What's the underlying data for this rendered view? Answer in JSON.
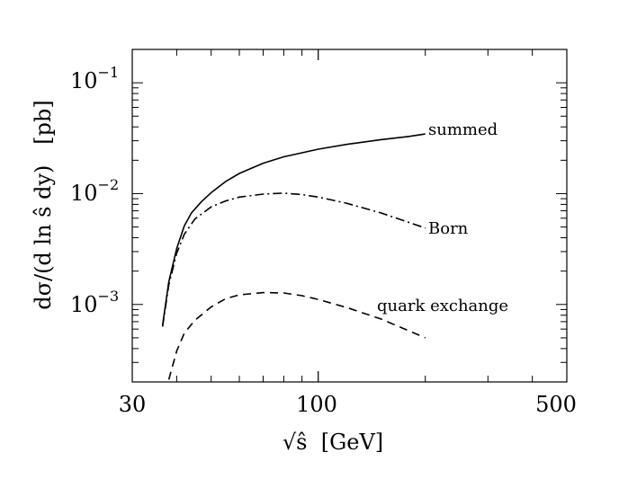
{
  "chart_data": {
    "type": "line",
    "title": "",
    "xlabel": "√ŝ  [GeV]",
    "ylabel": "dσ/(d ln ŝ dy)   [pb]",
    "xscale": "log",
    "yscale": "log",
    "xlim": [
      30,
      500
    ],
    "ylim": [
      0.0002,
      0.2
    ],
    "x_ticks": [
      {
        "value": 30,
        "label": "30"
      },
      {
        "value": 100,
        "label": "100"
      },
      {
        "value": 500,
        "label": "500"
      }
    ],
    "y_ticks": [
      {
        "value": 0.001,
        "base": "10",
        "exp": "−3"
      },
      {
        "value": 0.01,
        "base": "10",
        "exp": "−2"
      },
      {
        "value": 0.1,
        "base": "10",
        "exp": "−1"
      }
    ],
    "series": [
      {
        "name": "summed",
        "style": "solid",
        "x": [
          36.5,
          38,
          40,
          42,
          44,
          47,
          50,
          55,
          60,
          70,
          80,
          100,
          120,
          150,
          180,
          200
        ],
        "y": [
          0.00065,
          0.0016,
          0.0032,
          0.0051,
          0.0067,
          0.0085,
          0.0102,
          0.0129,
          0.0152,
          0.0188,
          0.0215,
          0.0252,
          0.0278,
          0.0307,
          0.0328,
          0.0345
        ]
      },
      {
        "name": "Born",
        "style": "dashdot",
        "x": [
          36.5,
          38,
          40,
          42,
          45,
          50,
          55,
          60,
          70,
          80,
          90,
          100,
          120,
          150,
          200
        ],
        "y": [
          0.00063,
          0.0015,
          0.0029,
          0.0043,
          0.0059,
          0.0076,
          0.0086,
          0.0093,
          0.0099,
          0.0101,
          0.0098,
          0.0093,
          0.0082,
          0.0067,
          0.0049
        ]
      },
      {
        "name": "quark exchange",
        "style": "dashed",
        "x": [
          38,
          40,
          42,
          45,
          50,
          55,
          60,
          70,
          80,
          90,
          100,
          120,
          150,
          200
        ],
        "y": [
          0.00021,
          0.00038,
          0.00055,
          0.00072,
          0.00095,
          0.00113,
          0.00122,
          0.00128,
          0.00127,
          0.0012,
          0.00111,
          0.00094,
          0.00074,
          0.0005
        ]
      }
    ],
    "annotations": [
      {
        "text": "summed",
        "x": 210,
        "y": 0.037
      },
      {
        "text": "Born",
        "x": 210,
        "y": 0.0048
      },
      {
        "text": "quark exchange",
        "x": 190,
        "y": 0.00088
      }
    ]
  }
}
